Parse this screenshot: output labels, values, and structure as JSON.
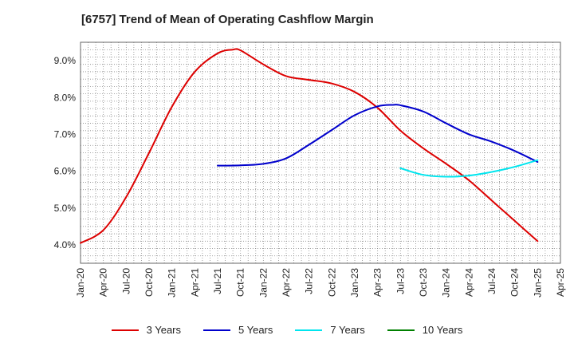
{
  "chart_data": {
    "type": "line",
    "title": "[6757]  Trend of Mean of Operating Cashflow Margin",
    "xlabel": "",
    "ylabel": "",
    "x_ticks": [
      "Jan-20",
      "Apr-20",
      "Jul-20",
      "Oct-20",
      "Jan-21",
      "Apr-21",
      "Jul-21",
      "Oct-21",
      "Jan-22",
      "Apr-22",
      "Jul-22",
      "Oct-22",
      "Jan-23",
      "Apr-23",
      "Jul-23",
      "Oct-23",
      "Jan-24",
      "Apr-24",
      "Jul-24",
      "Oct-24",
      "Jan-25",
      "Apr-25"
    ],
    "y_ticks": [
      "4.0%",
      "5.0%",
      "6.0%",
      "7.0%",
      "8.0%",
      "9.0%"
    ],
    "ylim": [
      3.5,
      9.5
    ],
    "y_unit": "%",
    "grid": true,
    "legend_position": "bottom",
    "series": [
      {
        "name": "3 Years",
        "color": "#dd0000",
        "points": [
          [
            "Jan-20",
            4.05
          ],
          [
            "Apr-20",
            4.4
          ],
          [
            "Jul-20",
            5.3
          ],
          [
            "Oct-20",
            6.5
          ],
          [
            "Jan-21",
            7.75
          ],
          [
            "Apr-21",
            8.7
          ],
          [
            "Jul-21",
            9.2
          ],
          [
            "Sep-21",
            9.3
          ],
          [
            "Oct-21",
            9.28
          ],
          [
            "Jan-22",
            8.9
          ],
          [
            "Apr-22",
            8.58
          ],
          [
            "Jul-22",
            8.48
          ],
          [
            "Oct-22",
            8.38
          ],
          [
            "Jan-23",
            8.15
          ],
          [
            "Apr-23",
            7.72
          ],
          [
            "Jul-23",
            7.1
          ],
          [
            "Oct-23",
            6.62
          ],
          [
            "Jan-24",
            6.2
          ],
          [
            "Apr-24",
            5.75
          ],
          [
            "Jul-24",
            5.2
          ],
          [
            "Oct-24",
            4.65
          ],
          [
            "Jan-25",
            4.1
          ]
        ]
      },
      {
        "name": "5 Years",
        "color": "#0000cc",
        "points": [
          [
            "Jul-21",
            6.15
          ],
          [
            "Oct-21",
            6.16
          ],
          [
            "Jan-22",
            6.2
          ],
          [
            "Apr-22",
            6.35
          ],
          [
            "Jul-22",
            6.72
          ],
          [
            "Oct-22",
            7.12
          ],
          [
            "Jan-23",
            7.52
          ],
          [
            "Apr-23",
            7.76
          ],
          [
            "Jun-23",
            7.8
          ],
          [
            "Jul-23",
            7.79
          ],
          [
            "Oct-23",
            7.62
          ],
          [
            "Jan-24",
            7.3
          ],
          [
            "Apr-24",
            7.0
          ],
          [
            "Jul-24",
            6.8
          ],
          [
            "Oct-24",
            6.55
          ],
          [
            "Jan-25",
            6.25
          ]
        ]
      },
      {
        "name": "7 Years",
        "color": "#00e5ee",
        "points": [
          [
            "Jul-23",
            6.08
          ],
          [
            "Oct-23",
            5.9
          ],
          [
            "Jan-24",
            5.85
          ],
          [
            "Apr-24",
            5.88
          ],
          [
            "Jul-24",
            5.98
          ],
          [
            "Oct-24",
            6.12
          ],
          [
            "Jan-25",
            6.3
          ]
        ]
      },
      {
        "name": "10 Years",
        "color": "#008000",
        "points": []
      }
    ]
  }
}
